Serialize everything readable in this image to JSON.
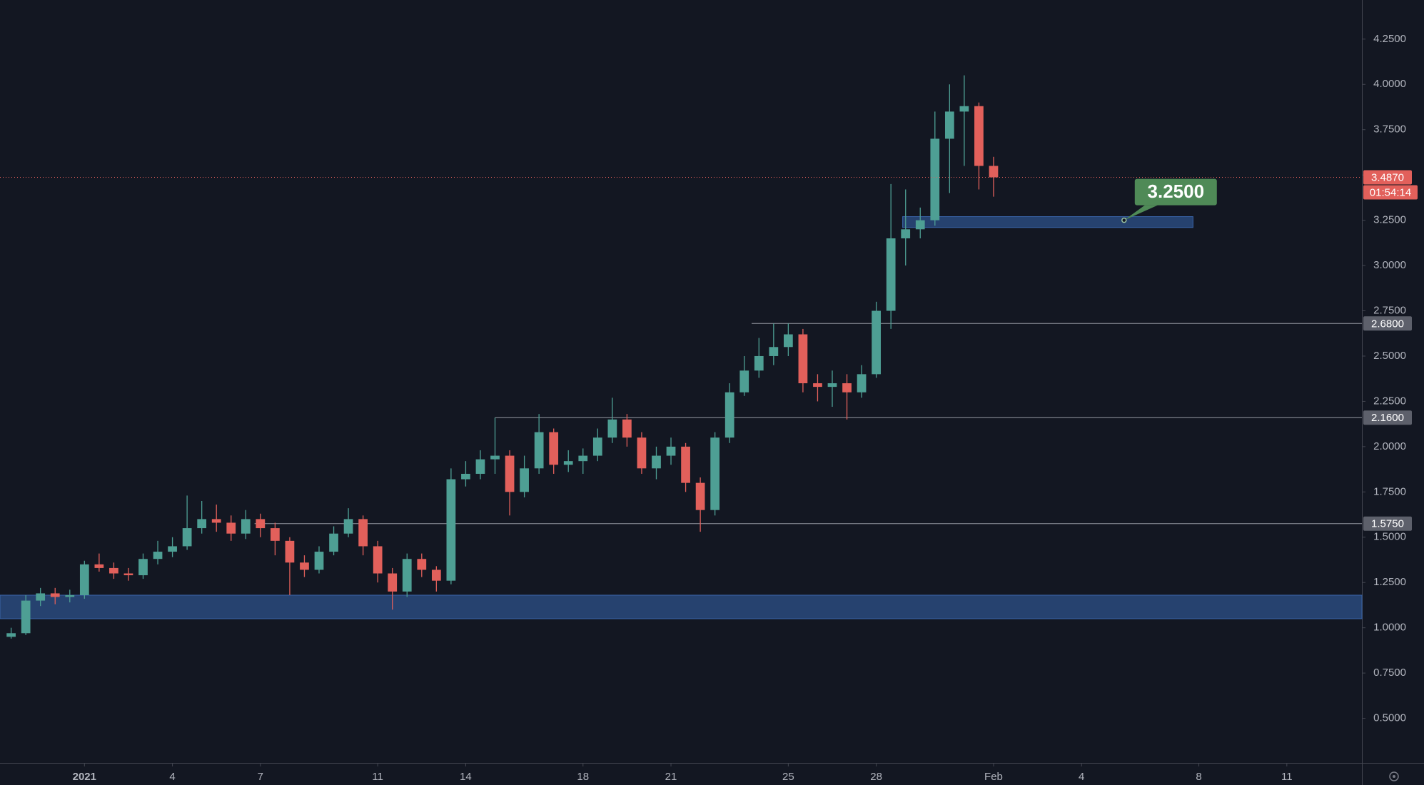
{
  "chart_data": {
    "type": "candlestick",
    "up_color": "#4e9f94",
    "down_color": "#e2605b",
    "x": [
      -2.5,
      -2,
      -1.5,
      -1,
      -0.5,
      0,
      0.5,
      1,
      1.5,
      2,
      2.5,
      3,
      3.5,
      4,
      4.5,
      5,
      5.5,
      6,
      6.5,
      7,
      7.5,
      8,
      8.5,
      9,
      9.5,
      10,
      10.5,
      11,
      11.5,
      12,
      12.5,
      13,
      13.5,
      14,
      14.5,
      15,
      15.5,
      16,
      16.5,
      17,
      17.5,
      18,
      18.5,
      19,
      19.5,
      20,
      20.5,
      21,
      21.5,
      22,
      22.5,
      23,
      23.5,
      24,
      24.5,
      25,
      25.5,
      26,
      26.5,
      27,
      27.5,
      28,
      28.5,
      29,
      29.5,
      30,
      30.5,
      31
    ],
    "open": [
      0.95,
      0.97,
      1.15,
      1.19,
      1.17,
      1.18,
      1.35,
      1.33,
      1.3,
      1.29,
      1.38,
      1.42,
      1.45,
      1.55,
      1.6,
      1.58,
      1.52,
      1.6,
      1.55,
      1.48,
      1.36,
      1.32,
      1.42,
      1.52,
      1.6,
      1.45,
      1.3,
      1.2,
      1.38,
      1.32,
      1.26,
      1.82,
      1.85,
      1.93,
      1.95,
      1.75,
      1.88,
      2.08,
      1.9,
      1.92,
      1.95,
      2.05,
      2.15,
      2.05,
      1.88,
      1.95,
      2.0,
      1.8,
      1.65,
      2.05,
      2.3,
      2.42,
      2.5,
      2.55,
      2.62,
      2.35,
      2.33,
      2.35,
      2.3,
      2.4,
      2.75,
      3.15,
      3.2,
      3.25,
      3.7,
      3.85,
      3.88,
      3.55
    ],
    "high": [
      1.0,
      1.18,
      1.22,
      1.22,
      1.21,
      1.37,
      1.41,
      1.36,
      1.33,
      1.41,
      1.48,
      1.5,
      1.73,
      1.7,
      1.68,
      1.62,
      1.65,
      1.63,
      1.58,
      1.5,
      1.4,
      1.45,
      1.56,
      1.66,
      1.62,
      1.48,
      1.33,
      1.41,
      1.41,
      1.34,
      1.88,
      1.92,
      1.98,
      2.16,
      1.98,
      1.95,
      2.18,
      2.1,
      1.98,
      1.99,
      2.1,
      2.27,
      2.18,
      2.08,
      2.0,
      2.05,
      2.02,
      1.83,
      2.08,
      2.35,
      2.5,
      2.6,
      2.68,
      2.68,
      2.65,
      2.4,
      2.42,
      2.4,
      2.45,
      2.8,
      3.45,
      3.42,
      3.32,
      3.85,
      4.0,
      4.05,
      3.9,
      3.6
    ],
    "low": [
      0.94,
      0.96,
      1.12,
      1.13,
      1.14,
      1.16,
      1.31,
      1.27,
      1.26,
      1.27,
      1.35,
      1.39,
      1.43,
      1.52,
      1.53,
      1.48,
      1.49,
      1.5,
      1.4,
      1.18,
      1.28,
      1.3,
      1.4,
      1.5,
      1.4,
      1.25,
      1.1,
      1.17,
      1.28,
      1.2,
      1.24,
      1.78,
      1.82,
      1.85,
      1.62,
      1.72,
      1.85,
      1.85,
      1.86,
      1.85,
      1.92,
      2.02,
      2.0,
      1.85,
      1.82,
      1.9,
      1.75,
      1.53,
      1.62,
      2.02,
      2.28,
      2.38,
      2.45,
      2.5,
      2.3,
      2.25,
      2.22,
      2.15,
      2.27,
      2.38,
      2.65,
      3.0,
      3.15,
      3.22,
      3.4,
      3.55,
      3.42,
      3.38
    ],
    "close": [
      0.97,
      1.15,
      1.19,
      1.17,
      1.18,
      1.35,
      1.33,
      1.3,
      1.29,
      1.38,
      1.42,
      1.45,
      1.55,
      1.6,
      1.58,
      1.52,
      1.6,
      1.55,
      1.48,
      1.36,
      1.32,
      1.42,
      1.52,
      1.6,
      1.45,
      1.3,
      1.2,
      1.38,
      1.32,
      1.26,
      1.82,
      1.85,
      1.93,
      1.95,
      1.75,
      1.88,
      2.08,
      1.9,
      1.92,
      1.95,
      2.05,
      2.15,
      2.05,
      1.88,
      1.95,
      2.0,
      1.8,
      1.65,
      2.05,
      2.3,
      2.42,
      2.5,
      2.55,
      2.62,
      2.35,
      2.33,
      2.35,
      2.3,
      2.4,
      2.75,
      3.15,
      3.2,
      3.25,
      3.7,
      3.85,
      3.88,
      3.55,
      3.487
    ],
    "xlim": [
      -2.88,
      43.56
    ],
    "xticks": [
      {
        "value": 0,
        "label": "2021"
      },
      {
        "value": 3,
        "label": "4"
      },
      {
        "value": 6,
        "label": "7"
      },
      {
        "value": 10,
        "label": "11"
      },
      {
        "value": 13,
        "label": "14"
      },
      {
        "value": 17,
        "label": "18"
      },
      {
        "value": 20,
        "label": "21"
      },
      {
        "value": 24,
        "label": "25"
      },
      {
        "value": 27,
        "label": "28"
      },
      {
        "value": 31,
        "label": "Feb"
      },
      {
        "value": 34,
        "label": "4"
      },
      {
        "value": 38,
        "label": "8"
      },
      {
        "value": 41,
        "label": "11"
      }
    ],
    "ylim": [
      0.254,
      4.466
    ],
    "yticks": [
      {
        "value": 0.5,
        "label": "0.5000"
      },
      {
        "value": 0.75,
        "label": "0.7500"
      },
      {
        "value": 1,
        "label": "1.0000"
      },
      {
        "value": 1.25,
        "label": "1.2500"
      },
      {
        "value": 1.5,
        "label": "1.5000"
      },
      {
        "value": 1.75,
        "label": "1.7500"
      },
      {
        "value": 2,
        "label": "2.0000"
      },
      {
        "value": 2.25,
        "label": "2.2500"
      },
      {
        "value": 2.5,
        "label": "2.5000"
      },
      {
        "value": 2.75,
        "label": "2.7500"
      },
      {
        "value": 3,
        "label": "3.0000"
      },
      {
        "value": 3.25,
        "label": "3.2500"
      },
      {
        "value": 3.5,
        "label": "3.5000"
      },
      {
        "value": 3.75,
        "label": "3.7500"
      },
      {
        "value": 4,
        "label": "4.0000"
      },
      {
        "value": 4.25,
        "label": "4.2500"
      }
    ],
    "levels": [
      {
        "value": 2.68,
        "label": "2.6800",
        "x_start": 22.75
      },
      {
        "value": 2.16,
        "label": "2.1600",
        "x_start": 14
      },
      {
        "value": 1.575,
        "label": "1.5750",
        "x_start": 5.8
      }
    ],
    "zones": [
      {
        "range": [
          1.05,
          1.18
        ],
        "x_range": [
          -2.88,
          43.56
        ]
      },
      {
        "range": [
          3.21,
          3.27
        ],
        "x_range": [
          27.9,
          37.8
        ]
      }
    ],
    "last_price": {
      "value": 3.487,
      "label": "3.4870",
      "countdown": "01:54:14"
    },
    "callout": {
      "value": 3.25,
      "label": "3.2500",
      "x": 35.45,
      "color": "#4f8a57"
    }
  }
}
